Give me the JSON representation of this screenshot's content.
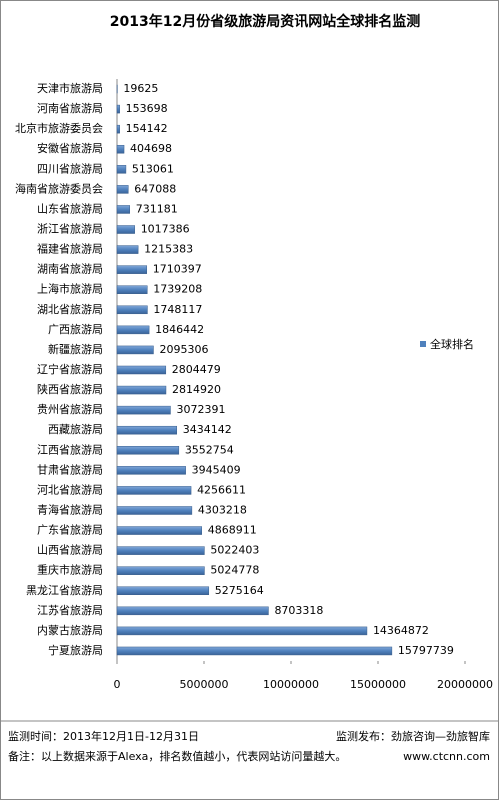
{
  "chart_data": {
    "type": "hbar",
    "title": "2013年12月份省级旅游局资讯网站全球排名监测",
    "categories": [
      "天津市旅游局",
      "河南省旅游局",
      "北京市旅游委员会",
      "安徽省旅游局",
      "四川省旅游局",
      "海南省旅游委员会",
      "山东省旅游局",
      "浙江省旅游局",
      "福建省旅游局",
      "湖南省旅游局",
      "上海市旅游局",
      "湖北省旅游局",
      "广西旅游局",
      "新疆旅游局",
      "辽宁省旅游局",
      "陕西省旅游局",
      "贵州省旅游局",
      "西藏旅游局",
      "江西省旅游局",
      "甘肃省旅游局",
      "河北省旅游局",
      "青海省旅游局",
      "广东省旅游局",
      "山西省旅游局",
      "重庆市旅游局",
      "黑龙江省旅游局",
      "江苏省旅游局",
      "内蒙古旅游局",
      "宁夏旅游局"
    ],
    "series": [
      {
        "name": "全球排名",
        "color": "#4f81bd",
        "values": [
          19625,
          153698,
          154142,
          404698,
          513061,
          647088,
          731181,
          1017386,
          1215383,
          1710397,
          1739208,
          1748117,
          1846442,
          2095306,
          2804479,
          2814920,
          3072391,
          3434142,
          3552754,
          3945409,
          4256611,
          4303218,
          4868911,
          5022403,
          5024778,
          5275164,
          8703318,
          14364872,
          15797739
        ]
      }
    ],
    "xlim": [
      0,
      20000000
    ],
    "xticks": [
      0,
      5000000,
      10000000,
      15000000,
      20000000
    ],
    "legend": "right"
  },
  "footer": {
    "period": "监测时间：2013年12月1日-12月31日",
    "publisher": "监测发布：劲旅咨询—劲旅智库",
    "note": "备注：以上数据来源于Alexa，排名数值越小，代表网站访问量越大。",
    "site": "www.ctcnn.com"
  }
}
